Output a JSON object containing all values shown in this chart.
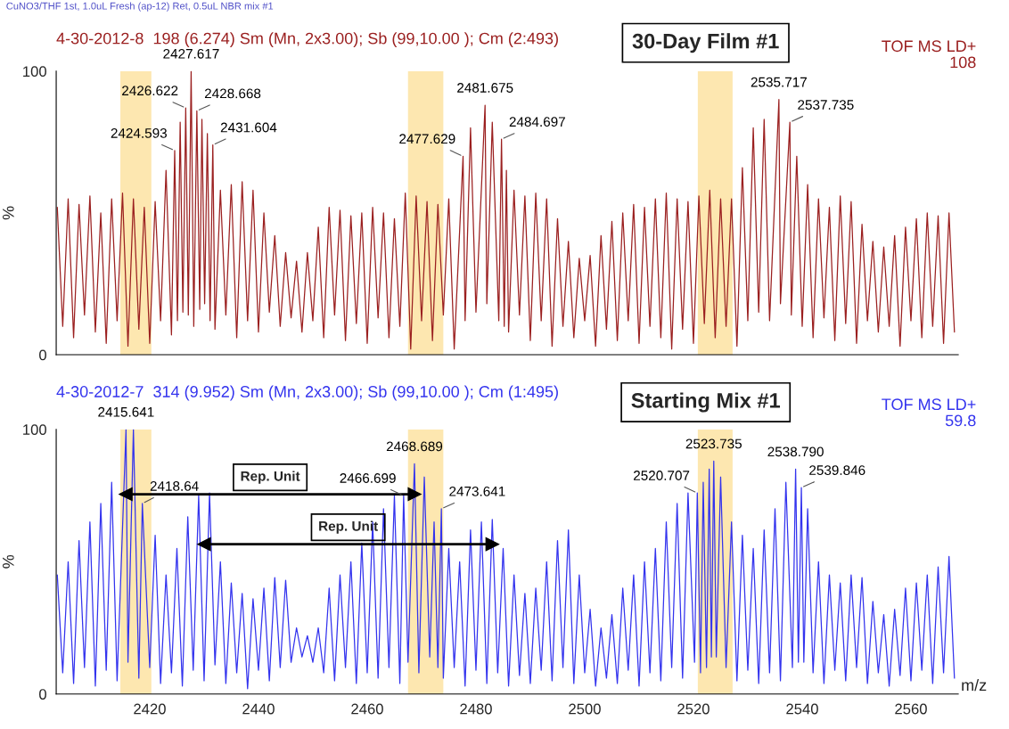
{
  "chart_data": [
    {
      "type": "line",
      "title": "4-30-2012-8  198 (6.274) Sm (Mn, 2x3.00); Sb (99,10.00 ); Cm (2:493)",
      "subtitle": "30-Day Film #1",
      "ylabel": "%",
      "xlim": [
        2402.8,
        2568.7
      ],
      "ylim": [
        0,
        100
      ],
      "yticks": [
        0,
        100
      ],
      "tick_labels": "y",
      "grid": false,
      "marker": "none",
      "line_style": "solid",
      "bands": [
        {
          "axis": "x",
          "from": 2414.6,
          "to": 2420.3,
          "color": "#fde7b0"
        },
        {
          "axis": "x",
          "from": 2467.5,
          "to": 2474,
          "color": "#fde7b0"
        },
        {
          "axis": "x",
          "from": 2520.8,
          "to": 2527.2,
          "color": "#fde7b0"
        }
      ],
      "series": [
        {
          "color": "#9b2020",
          "x": [
            2403,
            2404,
            2405,
            2406,
            2407,
            2408,
            2409,
            2410,
            2411,
            2412,
            2413,
            2414,
            2415,
            2416,
            2417,
            2418,
            2419,
            2420,
            2421,
            2422,
            2423,
            2424,
            2424.593,
            2425.1,
            2425.6,
            2426.1,
            2426.622,
            2427.1,
            2427.617,
            2428.1,
            2428.668,
            2429.2,
            2429.6,
            2430.1,
            2430.6,
            2431.1,
            2431.604,
            2432,
            2433,
            2434,
            2435,
            2436,
            2437,
            2438,
            2439,
            2440,
            2441,
            2442,
            2443,
            2444,
            2445,
            2446,
            2447,
            2448,
            2449,
            2450,
            2451,
            2452,
            2453,
            2454,
            2455,
            2456,
            2457,
            2458,
            2459,
            2460,
            2461,
            2462,
            2463,
            2464,
            2465,
            2466,
            2467,
            2468,
            2469,
            2470,
            2471,
            2472,
            2473,
            2474,
            2475,
            2476,
            2477.629,
            2478,
            2479,
            2480,
            2481.675,
            2482,
            2483,
            2484.2,
            2484.697,
            2485.2,
            2485.6,
            2486,
            2487,
            2488,
            2489,
            2490,
            2491,
            2492,
            2493,
            2494,
            2495,
            2496,
            2497,
            2498,
            2499,
            2500,
            2501,
            2502,
            2503,
            2504,
            2505,
            2506,
            2507,
            2508,
            2509,
            2510,
            2511,
            2512,
            2513,
            2514,
            2515,
            2516,
            2517,
            2518,
            2519,
            2520,
            2521,
            2522,
            2523,
            2524,
            2525,
            2526,
            2527,
            2528,
            2529,
            2530,
            2531,
            2532,
            2533,
            2534,
            2535.717,
            2536,
            2537.735,
            2538,
            2539,
            2540,
            2541,
            2542,
            2543,
            2544,
            2545,
            2546,
            2547,
            2548,
            2549,
            2550,
            2551,
            2552,
            2553,
            2554,
            2555,
            2556,
            2557,
            2558,
            2559,
            2560,
            2561,
            2562,
            2563,
            2564,
            2565,
            2566,
            2567,
            2568
          ],
          "values": [
            52,
            10,
            55,
            6,
            53,
            14,
            56,
            8,
            50,
            4,
            55,
            12,
            57,
            3,
            55,
            9,
            52,
            4,
            54,
            12,
            65,
            7,
            72,
            12,
            82,
            15,
            87,
            14,
            100,
            10,
            86,
            16,
            83,
            18,
            78,
            12,
            74,
            9,
            58,
            14,
            60,
            6,
            61,
            12,
            58,
            8,
            50,
            15,
            42,
            10,
            36,
            13,
            33,
            8,
            36,
            12,
            45,
            6,
            52,
            14,
            51,
            5,
            49,
            11,
            50,
            4,
            52,
            13,
            50,
            6,
            48,
            10,
            57,
            2,
            56,
            12,
            54,
            5,
            53,
            14,
            55,
            2,
            70,
            12,
            80,
            15,
            88,
            18,
            82,
            12,
            76,
            10,
            65,
            8,
            58,
            14,
            56,
            5,
            57,
            12,
            55,
            3,
            48,
            10,
            40,
            6,
            34,
            12,
            35,
            3,
            42,
            9,
            47,
            5,
            50,
            12,
            53,
            4,
            52,
            10,
            55,
            6,
            57,
            2,
            55,
            9,
            54,
            4,
            56,
            11,
            58,
            6,
            55,
            10,
            55,
            3,
            66,
            12,
            80,
            15,
            83,
            12,
            90,
            18,
            82,
            14,
            70,
            10,
            60,
            6,
            55,
            13,
            52,
            5,
            56,
            11,
            54,
            4,
            46,
            12,
            40,
            8,
            38,
            10,
            42,
            3,
            45,
            12,
            48,
            6,
            50,
            10,
            49,
            4,
            50,
            8
          ]
        }
      ],
      "annotations": [
        "CuNO3/THF 1st, 1.0uL Fresh (ap-12) Ret, 0.5uL NBR mix #1",
        "TOF MS LD+\n108",
        {
          "text": "2424.593",
          "x": 2424.593,
          "y": 72
        },
        {
          "text": "2426.622",
          "x": 2426.622,
          "y": 87
        },
        {
          "text": "2427.617",
          "x": 2427.617,
          "y": 100
        },
        {
          "text": "2428.668",
          "x": 2428.668,
          "y": 86
        },
        {
          "text": "2431.604",
          "x": 2431.604,
          "y": 74
        },
        {
          "text": "2477.629",
          "x": 2477.629,
          "y": 70
        },
        {
          "text": "2481.675",
          "x": 2481.675,
          "y": 88
        },
        {
          "text": "2484.697",
          "x": 2484.697,
          "y": 76
        },
        {
          "text": "2535.717",
          "x": 2535.717,
          "y": 90
        },
        {
          "text": "2537.735",
          "x": 2537.735,
          "y": 82
        }
      ]
    },
    {
      "type": "line",
      "title": "4-30-2012-7  314 (9.952) Sm (Mn, 2x3.00); Sb (99,10.00 ); Cm (1:495)",
      "subtitle": "Starting Mix #1",
      "ylabel": "%",
      "xlabel": "m/z",
      "xlim": [
        2402.8,
        2568.7
      ],
      "ylim": [
        0,
        100
      ],
      "yticks": [
        0,
        100
      ],
      "xticks": [
        2420,
        2440,
        2460,
        2480,
        2500,
        2520,
        2540,
        2560
      ],
      "grid": false,
      "marker": "none",
      "line_style": "solid",
      "bands": [
        {
          "axis": "x",
          "from": 2414.6,
          "to": 2420.3,
          "color": "#fde7b0"
        },
        {
          "axis": "x",
          "from": 2467.5,
          "to": 2474,
          "color": "#fde7b0"
        },
        {
          "axis": "x",
          "from": 2520.8,
          "to": 2527.2,
          "color": "#fde7b0"
        }
      ],
      "series": [
        {
          "color": "#3333ee",
          "x": [
            2403,
            2404,
            2405,
            2406,
            2407,
            2408,
            2409,
            2410,
            2411,
            2412,
            2413,
            2414,
            2415.641,
            2416,
            2417,
            2418,
            2418.64,
            2420,
            2421,
            2422,
            2423,
            2424,
            2425,
            2426,
            2427,
            2428,
            2429,
            2430,
            2431,
            2432,
            2433,
            2434,
            2435,
            2436,
            2437,
            2438,
            2439,
            2440,
            2441,
            2442,
            2443,
            2444,
            2445,
            2446,
            2447,
            2448,
            2449,
            2450,
            2451,
            2452,
            2453,
            2454,
            2455,
            2456,
            2457,
            2458,
            2459,
            2460,
            2461,
            2462,
            2463,
            2464,
            2465,
            2466,
            2466.699,
            2467.5,
            2468.689,
            2469.5,
            2470.5,
            2471.5,
            2472.3,
            2473,
            2473.641,
            2474,
            2475,
            2476,
            2477,
            2478,
            2479,
            2480,
            2481,
            2482,
            2483,
            2484,
            2485,
            2486,
            2487,
            2488,
            2489,
            2490,
            2491,
            2492,
            2493,
            2494,
            2495,
            2496,
            2497,
            2498,
            2499,
            2500,
            2501,
            2502,
            2503,
            2504,
            2505,
            2506,
            2507,
            2508,
            2509,
            2510,
            2511,
            2512,
            2513,
            2514,
            2515,
            2516,
            2517,
            2518,
            2519,
            2520.2,
            2520.707,
            2521.3,
            2521.8,
            2522.4,
            2522.9,
            2523.3,
            2523.735,
            2524.2,
            2525,
            2526,
            2527,
            2528,
            2529,
            2530,
            2531,
            2532,
            2533,
            2534,
            2535,
            2536,
            2537,
            2538.2,
            2538.79,
            2539.3,
            2539.846,
            2540.3,
            2541,
            2542,
            2543,
            2544,
            2545,
            2546,
            2547,
            2548,
            2549,
            2550,
            2551,
            2552,
            2553,
            2554,
            2555,
            2556,
            2557,
            2558,
            2559,
            2560,
            2561,
            2562,
            2563,
            2564,
            2565,
            2566,
            2567,
            2568
          ],
          "values": [
            45,
            8,
            50,
            4,
            58,
            10,
            65,
            3,
            72,
            9,
            80,
            5,
            100,
            12,
            100,
            6,
            72,
            10,
            60,
            4,
            45,
            8,
            55,
            3,
            67,
            9,
            75,
            5,
            76,
            11,
            50,
            4,
            42,
            8,
            38,
            2,
            36,
            9,
            40,
            5,
            44,
            10,
            43,
            12,
            25,
            14,
            22,
            12,
            25,
            8,
            40,
            5,
            45,
            10,
            50,
            4,
            57,
            8,
            65,
            6,
            70,
            10,
            75,
            4,
            75,
            12,
            87,
            8,
            82,
            14,
            65,
            10,
            70,
            6,
            55,
            10,
            50,
            3,
            62,
            9,
            65,
            4,
            66,
            8,
            55,
            3,
            45,
            7,
            38,
            4,
            40,
            9,
            50,
            5,
            58,
            10,
            62,
            4,
            45,
            8,
            32,
            3,
            25,
            6,
            30,
            4,
            40,
            9,
            45,
            3,
            50,
            8,
            55,
            5,
            65,
            10,
            72,
            6,
            76,
            12,
            76,
            8,
            80,
            10,
            85,
            14,
            88,
            14,
            82,
            10,
            65,
            5,
            60,
            9,
            55,
            4,
            62,
            8,
            70,
            5,
            80,
            10,
            85,
            12,
            78,
            12,
            70,
            8,
            50,
            4,
            45,
            9,
            42,
            5,
            45,
            10,
            44,
            4,
            35,
            8,
            30,
            3,
            32,
            7,
            40,
            5,
            42,
            9,
            45,
            4,
            48,
            8,
            52,
            6
          ]
        },
        {
          "type": "line",
          "name": "Rep. Unit",
          "color": "#000000",
          "marker": "triangle",
          "x": [
            2415.6,
            2468.7
          ],
          "values": [
            75.5,
            75.5
          ]
        },
        {
          "type": "line",
          "name": "Rep. Unit",
          "color": "#000000",
          "marker": "triangle",
          "x": [
            2430,
            2483
          ],
          "values": [
            56.6,
            56.6
          ]
        }
      ],
      "annotations": [
        "TOF MS LD+\n59.8",
        {
          "text": "2415.641",
          "x": 2415.641,
          "y": 100
        },
        {
          "text": "2418.64",
          "x": 2418.64,
          "y": 72
        },
        {
          "text": "2466.699",
          "x": 2466.699,
          "y": 75
        },
        {
          "text": "2468.689",
          "x": 2468.689,
          "y": 87
        },
        {
          "text": "2473.641",
          "x": 2473.641,
          "y": 70
        },
        {
          "text": "2520.707",
          "x": 2520.707,
          "y": 76
        },
        {
          "text": "2523.735",
          "x": 2523.735,
          "y": 88
        },
        {
          "text": "2538.790",
          "x": 2538.79,
          "y": 85
        },
        {
          "text": "2539.846",
          "x": 2539.846,
          "y": 78
        }
      ]
    }
  ]
}
